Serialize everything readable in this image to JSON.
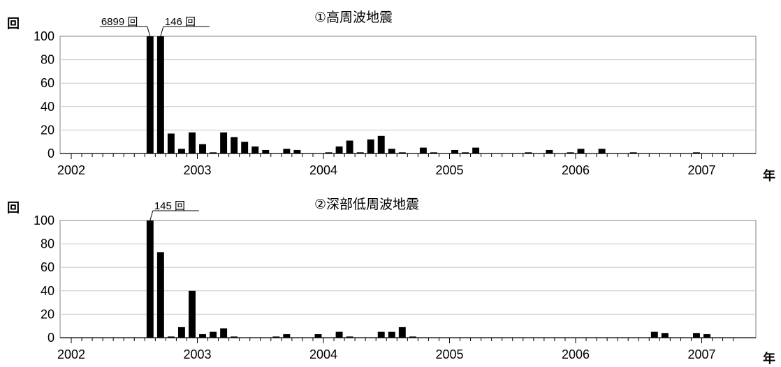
{
  "chart_data": [
    {
      "type": "bar",
      "title": "①高周波地震",
      "ylabel": "回",
      "xlabel": "年",
      "ylim": [
        0,
        100
      ],
      "y_ticks": [
        0,
        20,
        40,
        60,
        80,
        100
      ],
      "x_ticks": [
        "2002",
        "2003",
        "2004",
        "2005",
        "2006",
        "2007"
      ],
      "grid": true,
      "values": [
        0,
        0,
        0,
        0,
        0,
        0,
        0,
        100,
        100,
        17,
        4,
        18,
        8,
        1,
        18,
        14,
        10,
        6,
        3,
        0,
        4,
        3,
        0,
        0,
        1,
        6,
        11,
        1,
        12,
        15,
        4,
        1,
        0,
        5,
        1,
        0,
        3,
        1,
        5,
        0,
        0,
        0,
        0,
        1,
        0,
        3,
        0,
        1,
        4,
        0,
        4,
        0,
        0,
        1,
        0,
        0,
        0,
        0,
        0,
        1,
        0
      ],
      "annotations": [
        {
          "text": "6899 回",
          "bar_index": 7,
          "value": 6899
        },
        {
          "text": "146 回",
          "bar_index": 8,
          "value": 146
        }
      ]
    },
    {
      "type": "bar",
      "title": "②深部低周波地震",
      "ylabel": "回",
      "xlabel": "年",
      "ylim": [
        0,
        100
      ],
      "y_ticks": [
        0,
        20,
        40,
        60,
        80,
        100
      ],
      "x_ticks": [
        "2002",
        "2003",
        "2004",
        "2005",
        "2006",
        "2007"
      ],
      "grid": true,
      "values": [
        0,
        0,
        0,
        0,
        0,
        0,
        0,
        100,
        73,
        1,
        9,
        40,
        3,
        5,
        8,
        1,
        0,
        0,
        0,
        1,
        3,
        0,
        0,
        3,
        0,
        5,
        1,
        0,
        0,
        5,
        5,
        9,
        1,
        0,
        0,
        0,
        0,
        0,
        0,
        0,
        0,
        0,
        0,
        0,
        0,
        0,
        0,
        0,
        0,
        0,
        0,
        0,
        0,
        0,
        0,
        5,
        4,
        0,
        0,
        4,
        3
      ],
      "annotations": [
        {
          "text": "145 回",
          "bar_index": 7,
          "value": 145
        }
      ]
    }
  ]
}
